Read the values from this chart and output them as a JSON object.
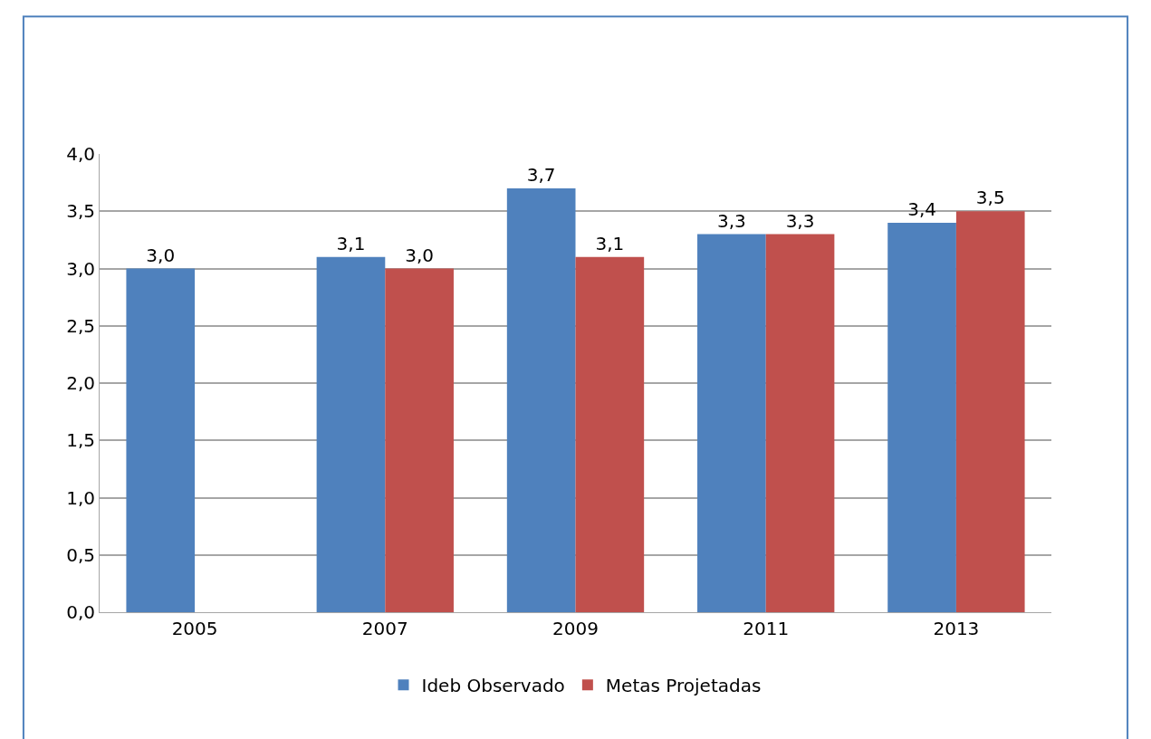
{
  "chart_data": {
    "type": "bar",
    "categories": [
      "2005",
      "2007",
      "2009",
      "2011",
      "2013"
    ],
    "series": [
      {
        "name": "Ideb Observado",
        "color": "#4f81bd",
        "values": [
          3.0,
          3.1,
          3.7,
          3.3,
          3.4
        ],
        "value_labels": [
          "3,0",
          "3,1",
          "3,7",
          "3,3",
          "3,4"
        ]
      },
      {
        "name": "Metas Projetadas",
        "color": "#c0504d",
        "values": [
          null,
          3.0,
          3.1,
          3.3,
          3.5
        ],
        "value_labels": [
          null,
          "3,0",
          "3,1",
          "3,3",
          "3,5"
        ]
      }
    ],
    "ylim": [
      0,
      4
    ],
    "yticks": [
      {
        "value": 0,
        "label": "0,0"
      },
      {
        "value": 0.5,
        "label": "0,5"
      },
      {
        "value": 1,
        "label": "1,0"
      },
      {
        "value": 1.5,
        "label": "1,5"
      },
      {
        "value": 2,
        "label": "2,0"
      },
      {
        "value": 2.5,
        "label": "2,5"
      },
      {
        "value": 3,
        "label": "3,0"
      },
      {
        "value": 3.5,
        "label": "3,5"
      },
      {
        "value": 4,
        "label": "4,0"
      }
    ],
    "grid": "y",
    "legend": "bottom"
  }
}
